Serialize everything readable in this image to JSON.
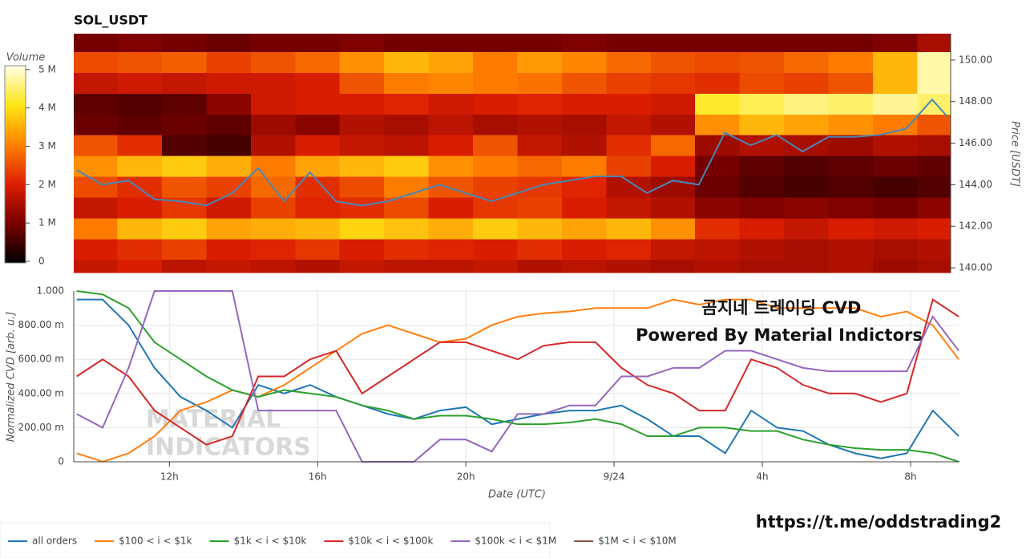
{
  "title": "SOL_USDT",
  "annotations": [
    "곰지네 트레이딩 CVD",
    "Powered By Material Indictors"
  ],
  "link": "https://t.me/oddstrading2",
  "watermark": [
    "MATERIAL",
    "INDICATORS"
  ],
  "chart_data": [
    {
      "type": "heatmap",
      "colorbar_title": "Volume",
      "ylabel": "Price [USDT]",
      "xlim": [
        9.42,
        33.1
      ],
      "ylim": [
        139.77,
        151.27
      ],
      "yticks": [
        {
          "value": 140,
          "label": "140.00"
        },
        {
          "value": 142,
          "label": "142.00"
        },
        {
          "value": 144,
          "label": "144.00"
        },
        {
          "value": 146,
          "label": "146.00"
        },
        {
          "value": 148,
          "label": "148.00"
        },
        {
          "value": 150,
          "label": "150.00"
        }
      ],
      "zlim": [
        0,
        5100000
      ],
      "zticks": [
        0,
        {
          "value": 1000000,
          "label": "1 M"
        },
        {
          "value": 2000000,
          "label": "2 M"
        },
        {
          "value": 3000000,
          "label": "3 M"
        },
        {
          "value": 4000000,
          "label": "4 M"
        },
        {
          "value": 5000000,
          "label": "5 M"
        }
      ],
      "x_edges": [
        9.42,
        10.6,
        11.8,
        13,
        14.2,
        15.4,
        16.6,
        17.8,
        19,
        20.2,
        21.4,
        22.6,
        23.8,
        25,
        26.2,
        27.4,
        28.6,
        29.8,
        31,
        32.2,
        33.1
      ],
      "y_edges": [
        139.77,
        140.4,
        141.4,
        142.4,
        143.4,
        144.4,
        145.4,
        146.4,
        147.4,
        148.4,
        149.4,
        150.4,
        151.27
      ],
      "z": [
        [
          1800000.0,
          2000000.0,
          1700000.0,
          1800000.0,
          1700000.0,
          1600000.0,
          1800000.0,
          1700000.0,
          1700000.0,
          1800000.0,
          1600000.0,
          1700000.0,
          1600000.0,
          1500000.0,
          1600000.0,
          1500000.0,
          1500000.0,
          1600000.0,
          1400000.0,
          1500000.0
        ],
        [
          2000000.0,
          2200000.0,
          2400000.0,
          2000000.0,
          2100000.0,
          2300000.0,
          2000000.0,
          2200000.0,
          2100000.0,
          2000000.0,
          2200000.0,
          2000000.0,
          2100000.0,
          1800000.0,
          1700000.0,
          1600000.0,
          1500000.0,
          1600000.0,
          1500000.0,
          1600000.0
        ],
        [
          3000000.0,
          3600000.0,
          3800000.0,
          3400000.0,
          3500000.0,
          3600000.0,
          3900000.0,
          3700000.0,
          3500000.0,
          3800000.0,
          3600000.0,
          3400000.0,
          3600000.0,
          3200000.0,
          2200000.0,
          2000000.0,
          1800000.0,
          2000000.0,
          1900000.0,
          2000000.0
        ],
        [
          1800000.0,
          2000000.0,
          2300000.0,
          1900000.0,
          2400000.0,
          2100000.0,
          2200000.0,
          2500000.0,
          2000000.0,
          2300000.0,
          2400000.0,
          2000000.0,
          1800000.0,
          1600000.0,
          1200000.0,
          1100000.0,
          1200000.0,
          1100000.0,
          1000000.0,
          1200000.0
        ],
        [
          2500000.0,
          2200000.0,
          2600000.0,
          2400000.0,
          2800000.0,
          2200000.0,
          2500000.0,
          3000000.0,
          2600000.0,
          2400000.0,
          2300000.0,
          2100000.0,
          1600000.0,
          1400000.0,
          900000.0,
          700000.0,
          600000.0,
          700000.0,
          600000.0,
          700000.0
        ],
        [
          3200000.0,
          3600000.0,
          3800000.0,
          3500000.0,
          3000000.0,
          3400000.0,
          3600000.0,
          3800000.0,
          3200000.0,
          3000000.0,
          2800000.0,
          3000000.0,
          2400000.0,
          2000000.0,
          1000000.0,
          800000.0,
          700000.0,
          800000.0,
          900000.0,
          800000.0
        ],
        [
          2600000.0,
          2200000.0,
          700000.0,
          600000.0,
          1600000.0,
          2000000.0,
          1800000.0,
          1700000.0,
          2000000.0,
          2600000.0,
          1800000.0,
          1600000.0,
          2200000.0,
          2800000.0,
          1400000.0,
          1600000.0,
          1500000.0,
          1400000.0,
          1600000.0,
          1500000.0
        ],
        [
          900000.0,
          800000.0,
          900000.0,
          800000.0,
          1400000.0,
          1200000.0,
          1600000.0,
          1500000.0,
          1700000.0,
          1500000.0,
          1600000.0,
          1500000.0,
          1800000.0,
          1600000.0,
          3200000.0,
          3600000.0,
          3400000.0,
          3200000.0,
          3000000.0,
          2600000.0
        ],
        [
          800000.0,
          700000.0,
          800000.0,
          1200000.0,
          1900000.0,
          2000000.0,
          2000000.0,
          2100000.0,
          1900000.0,
          2000000.0,
          2100000.0,
          2000000.0,
          2000000.0,
          1900000.0,
          4200000.0,
          4400000.0,
          4600000.0,
          4500000.0,
          4700000.0,
          4500000.0
        ],
        [
          1800000.0,
          1900000.0,
          1800000.0,
          1900000.0,
          1900000.0,
          2000000.0,
          2600000.0,
          3000000.0,
          3100000.0,
          3000000.0,
          2900000.0,
          2600000.0,
          2400000.0,
          2300000.0,
          2200000.0,
          2500000.0,
          2400000.0,
          2600000.0,
          3600000.0,
          4800000.0
        ],
        [
          2500000.0,
          2600000.0,
          2700000.0,
          2400000.0,
          2600000.0,
          2800000.0,
          3200000.0,
          3600000.0,
          3400000.0,
          3000000.0,
          3300000.0,
          3100000.0,
          2800000.0,
          2600000.0,
          2500000.0,
          2600000.0,
          2800000.0,
          3000000.0,
          3600000.0,
          4800000.0
        ],
        [
          1000000.0,
          1100000.0,
          1000000.0,
          900000.0,
          1000000.0,
          1000000.0,
          1100000.0,
          1000000.0,
          1000000.0,
          1000000.0,
          1000000.0,
          1100000.0,
          1000000.0,
          1000000.0,
          1000000.0,
          1000000.0,
          1000000.0,
          1000000.0,
          1100000.0,
          1500000.0
        ]
      ],
      "line": {
        "color": "#4a86b8",
        "x": [
          9.5,
          10.2,
          10.9,
          11.6,
          12.3,
          13,
          13.7,
          14.4,
          15.1,
          15.8,
          16.5,
          17.2,
          17.9,
          18.6,
          19.3,
          20,
          20.7,
          21.4,
          22.1,
          22.8,
          23.5,
          24.2,
          24.9,
          25.6,
          26.3,
          27,
          27.7,
          28.4,
          29.1,
          29.8,
          30.5,
          31.2,
          31.9,
          32.6,
          33.0
        ],
        "values": [
          144.7,
          144.0,
          144.2,
          143.3,
          143.2,
          143.0,
          143.6,
          144.8,
          143.2,
          144.6,
          143.2,
          143.0,
          143.2,
          143.6,
          144.0,
          143.6,
          143.2,
          143.6,
          144.0,
          144.2,
          144.4,
          144.4,
          143.6,
          144.2,
          144.0,
          146.5,
          145.9,
          146.4,
          145.6,
          146.3,
          146.3,
          146.4,
          146.7,
          148.1,
          147.3
        ]
      }
    },
    {
      "type": "line",
      "xlabel": "Date (UTC)",
      "ylabel": "Normalized CVD [arb. u.]",
      "grid": true,
      "legend": "bottom",
      "xlim": [
        9.42,
        33.32
      ],
      "xticks": [
        {
          "value": 12,
          "label": "12h"
        },
        {
          "value": 16,
          "label": "16h"
        },
        {
          "value": 20,
          "label": "20h"
        },
        {
          "value": 24,
          "label": "9/24"
        },
        {
          "value": 28,
          "label": "4h"
        },
        {
          "value": 32,
          "label": "8h"
        }
      ],
      "ylim": [
        0,
        1
      ],
      "yticks": [
        0,
        {
          "value": 0.2,
          "label": "200.00 m"
        },
        {
          "value": 0.4,
          "label": "400.00 m"
        },
        {
          "value": 0.6,
          "label": "600.00 m"
        },
        {
          "value": 0.8,
          "label": "800.00 m"
        },
        {
          "value": 1,
          "label": "1.000"
        }
      ],
      "x": [
        9.5,
        10.2,
        10.9,
        11.6,
        12.3,
        13,
        13.7,
        14.4,
        15.1,
        15.8,
        16.5,
        17.2,
        17.9,
        18.6,
        19.3,
        20,
        20.7,
        21.4,
        22.1,
        22.8,
        23.5,
        24.2,
        24.9,
        25.6,
        26.3,
        27,
        27.7,
        28.4,
        29.1,
        29.8,
        30.5,
        31.2,
        31.9,
        32.6,
        33.3
      ],
      "series": [
        {
          "name": "all orders",
          "color": "#1f77b4",
          "values": [
            0.95,
            0.95,
            0.8,
            0.55,
            0.38,
            0.3,
            0.2,
            0.45,
            0.4,
            0.45,
            0.38,
            0.33,
            0.28,
            0.25,
            0.3,
            0.32,
            0.22,
            0.25,
            0.28,
            0.3,
            0.3,
            0.33,
            0.25,
            0.15,
            0.15,
            0.05,
            0.3,
            0.2,
            0.18,
            0.1,
            0.05,
            0.02,
            0.05,
            0.3,
            0.15
          ]
        },
        {
          "name": "$100 < i < $1k",
          "color": "#ff7f0e",
          "values": [
            0.05,
            0,
            0.05,
            0.15,
            0.3,
            0.35,
            0.42,
            0.38,
            0.45,
            0.55,
            0.65,
            0.75,
            0.8,
            0.75,
            0.7,
            0.72,
            0.8,
            0.85,
            0.87,
            0.88,
            0.9,
            0.9,
            0.9,
            0.95,
            0.92,
            0.95,
            0.95,
            0.9,
            0.9,
            0.9,
            0.9,
            0.85,
            0.88,
            0.8,
            0.6
          ]
        },
        {
          "name": "$1k < i < $10k",
          "color": "#2ca02c",
          "values": [
            1,
            0.98,
            0.9,
            0.7,
            0.6,
            0.5,
            0.42,
            0.38,
            0.42,
            0.4,
            0.38,
            0.33,
            0.3,
            0.25,
            0.27,
            0.27,
            0.25,
            0.22,
            0.22,
            0.23,
            0.25,
            0.22,
            0.15,
            0.15,
            0.2,
            0.2,
            0.18,
            0.18,
            0.13,
            0.1,
            0.08,
            0.07,
            0.07,
            0.05,
            0
          ]
        },
        {
          "name": "$10k < i < $100k",
          "color": "#d62728",
          "values": [
            0.5,
            0.6,
            0.5,
            0.3,
            0.2,
            0.1,
            0.15,
            0.5,
            0.5,
            0.6,
            0.65,
            0.4,
            0.5,
            0.6,
            0.7,
            0.7,
            0.65,
            0.6,
            0.68,
            0.7,
            0.7,
            0.55,
            0.45,
            0.4,
            0.3,
            0.3,
            0.6,
            0.55,
            0.45,
            0.4,
            0.4,
            0.35,
            0.4,
            0.95,
            0.85
          ]
        },
        {
          "name": "$100k < i < $1M",
          "color": "#9467bd",
          "values": [
            0.28,
            0.2,
            0.55,
            1,
            1,
            1,
            1,
            0.3,
            0.3,
            0.3,
            0.3,
            0,
            0,
            0,
            0.13,
            0.13,
            0.06,
            0.28,
            0.28,
            0.33,
            0.33,
            0.5,
            0.5,
            0.55,
            0.55,
            0.65,
            0.65,
            0.6,
            0.55,
            0.53,
            0.53,
            0.53,
            0.53,
            0.85,
            0.65
          ]
        },
        {
          "name": "$1M < i < $10M",
          "color": "#8c564b",
          "values": [
            null,
            null,
            null,
            null,
            null,
            null,
            null,
            null,
            null,
            null,
            null,
            null,
            null,
            null,
            null,
            null,
            null,
            null,
            null,
            null,
            null,
            null,
            null,
            null,
            null,
            null,
            null,
            null,
            null,
            null,
            null,
            null,
            null,
            null,
            null
          ]
        }
      ]
    }
  ]
}
